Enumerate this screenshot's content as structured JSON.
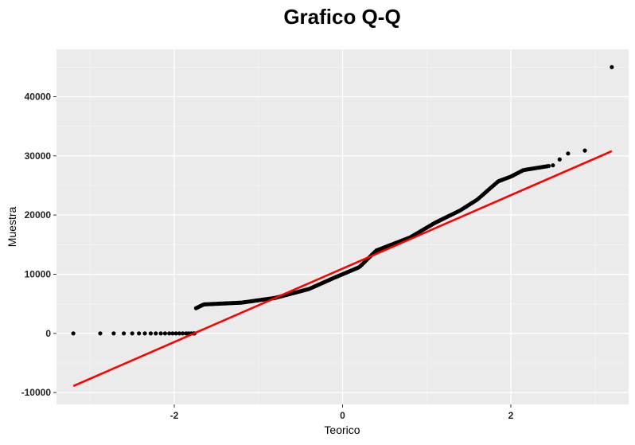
{
  "chart_data": {
    "type": "scatter",
    "title": "Grafico Q-Q",
    "xlabel": "Teorico",
    "ylabel": "Muestra",
    "xlim": [
      -3.4,
      3.4
    ],
    "ylim": [
      -12000,
      48000
    ],
    "x_ticks": [
      -2,
      0,
      2
    ],
    "x_tick_labels": [
      "-2",
      "0",
      "2"
    ],
    "y_ticks": [
      -10000,
      0,
      10000,
      20000,
      30000,
      40000
    ],
    "y_tick_labels": [
      "-10000",
      "0",
      "10000",
      "20000",
      "30000",
      "40000"
    ],
    "grid": true,
    "background": "#ebebeb",
    "point_color": "#000000",
    "line_color": "#ff0000",
    "reference_line": {
      "x": [
        -3.2,
        3.2
      ],
      "y": [
        -8900,
        30800
      ]
    },
    "sample_quantiles": {
      "theoretical_range": [
        -3.2,
        3.2
      ],
      "breakpoints": [
        [
          -3.2,
          0
        ],
        [
          -2.88,
          0
        ],
        [
          -1.76,
          0
        ],
        [
          -1.75,
          4200
        ],
        [
          -1.65,
          4900
        ],
        [
          -1.2,
          5200
        ],
        [
          -0.8,
          6000
        ],
        [
          -0.4,
          7500
        ],
        [
          -0.1,
          9400
        ],
        [
          0.2,
          11200
        ],
        [
          0.4,
          14000
        ],
        [
          0.8,
          16200
        ],
        [
          1.1,
          18700
        ],
        [
          1.4,
          20800
        ],
        [
          1.6,
          22600
        ],
        [
          1.85,
          25700
        ],
        [
          2.0,
          26500
        ],
        [
          2.15,
          27600
        ],
        [
          2.5,
          28400
        ],
        [
          2.9,
          30900
        ],
        [
          3.2,
          45000
        ]
      ]
    },
    "points": [
      [
        -3.2,
        0
      ],
      [
        -2.88,
        0
      ],
      [
        -2.72,
        0
      ],
      [
        -2.6,
        0
      ],
      [
        -2.5,
        0
      ],
      [
        -2.42,
        0
      ],
      [
        -2.35,
        0
      ],
      [
        -2.28,
        0
      ],
      [
        -2.22,
        0
      ],
      [
        -2.16,
        0
      ],
      [
        -2.11,
        0
      ],
      [
        -2.06,
        0
      ],
      [
        -2.02,
        0
      ],
      [
        -1.98,
        0
      ],
      [
        -1.94,
        0
      ],
      [
        -1.9,
        0
      ],
      [
        -1.86,
        0
      ],
      [
        -1.83,
        0
      ],
      [
        -1.8,
        0
      ],
      [
        -1.77,
        0
      ],
      [
        2.5,
        28400
      ],
      [
        2.58,
        29400
      ],
      [
        2.68,
        30400
      ],
      [
        2.88,
        30900
      ],
      [
        3.2,
        45000
      ]
    ]
  }
}
